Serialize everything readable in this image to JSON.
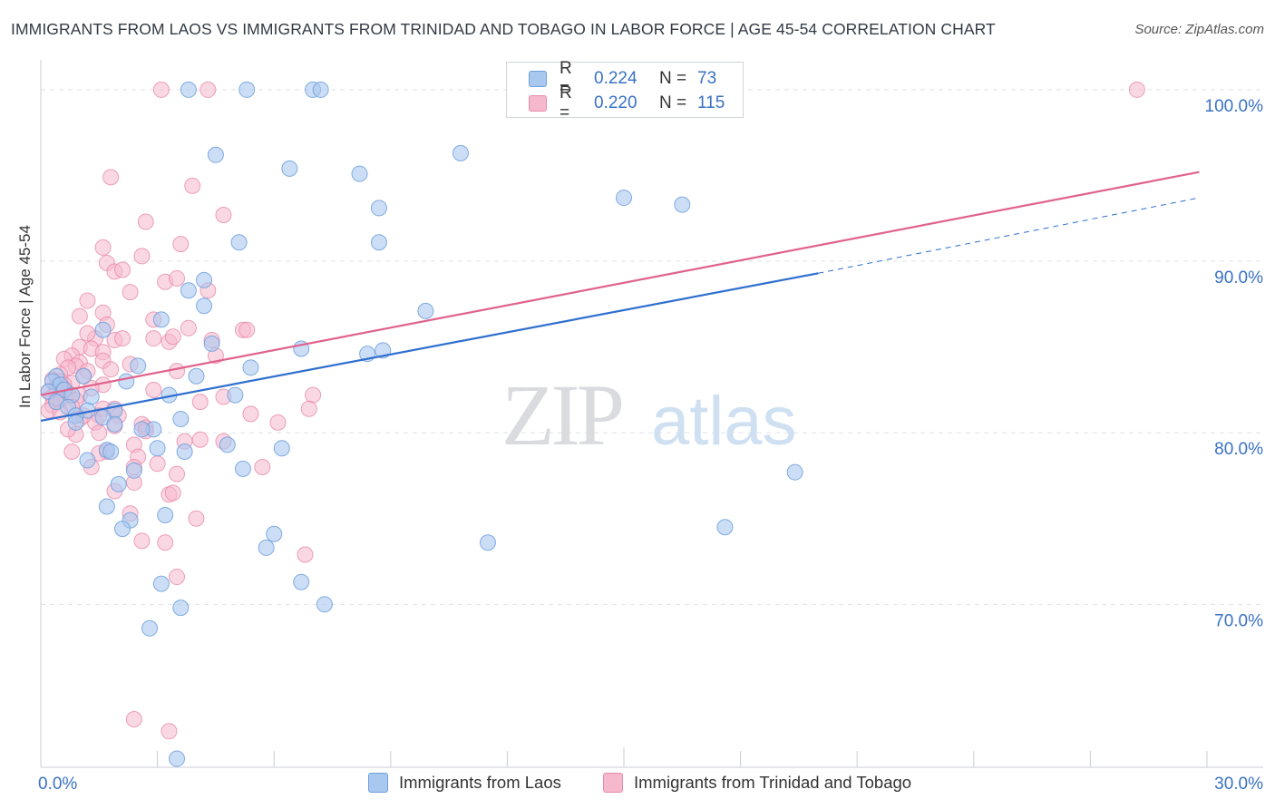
{
  "title": "IMMIGRANTS FROM LAOS VS IMMIGRANTS FROM TRINIDAD AND TOBAGO IN LABOR FORCE | AGE 45-54 CORRELATION CHART",
  "source": "Source: ZipAtlas.com",
  "watermark": {
    "zip": "ZIP",
    "atlas": "atlas"
  },
  "legend": {
    "r_label": "R =",
    "n_label": "N =",
    "rows": [
      {
        "r": "0.224",
        "n": "73"
      },
      {
        "r": "0.220",
        "n": "115"
      }
    ]
  },
  "colors": {
    "blue_fill": "#a9c8f0",
    "blue_stroke": "#6f9fdc",
    "blue_line": "#2f6fcf",
    "pink_fill": "#f6b8cc",
    "pink_stroke": "#e98aab",
    "pink_line": "#e0628d",
    "tick_text": "#3a72c4",
    "grid": "#dde1e6"
  },
  "chart_data": {
    "type": "scatter",
    "title": "IMMIGRANTS FROM LAOS VS IMMIGRANTS FROM TRINIDAD AND TOBAGO IN LABOR FORCE | AGE 45-54 CORRELATION CHART",
    "xlabel": "",
    "ylabel": "In Labor Force | Age 45-54",
    "xlim": [
      0,
      30
    ],
    "ylim": [
      60.5,
      101
    ],
    "x_tick_labels": [
      "0.0%",
      "30.0%"
    ],
    "y_ticks": [
      70,
      80,
      90,
      100
    ],
    "y_tick_labels": [
      "70.0%",
      "80.0%",
      "90.0%",
      "100.0%"
    ],
    "grid": true,
    "legend_position": "top-center",
    "series": [
      {
        "name": "Immigrants from Laos",
        "r": 0.224,
        "n": 73,
        "trend": {
          "x0": 0.0,
          "y0": 80.7,
          "x1": 20.0,
          "y1": 89.3,
          "dashed_to_x": 29.8,
          "dashed_to_y": 93.7
        },
        "points": [
          [
            3.8,
            100
          ],
          [
            5.3,
            100
          ],
          [
            7.0,
            100
          ],
          [
            7.2,
            100
          ],
          [
            4.5,
            96.2
          ],
          [
            6.4,
            95.4
          ],
          [
            8.2,
            95.1
          ],
          [
            10.8,
            96.3
          ],
          [
            15.0,
            93.7
          ],
          [
            16.5,
            93.3
          ],
          [
            8.7,
            93.1
          ],
          [
            5.1,
            91.1
          ],
          [
            8.7,
            91.1
          ],
          [
            4.2,
            88.9
          ],
          [
            3.8,
            88.3
          ],
          [
            4.2,
            87.4
          ],
          [
            3.1,
            86.6
          ],
          [
            9.9,
            87.1
          ],
          [
            1.6,
            86.0
          ],
          [
            4.4,
            85.2
          ],
          [
            6.7,
            84.9
          ],
          [
            8.4,
            84.6
          ],
          [
            8.8,
            84.8
          ],
          [
            2.5,
            83.9
          ],
          [
            5.4,
            83.8
          ],
          [
            4.0,
            83.3
          ],
          [
            1.1,
            83.3
          ],
          [
            2.2,
            83.0
          ],
          [
            0.4,
            83.3
          ],
          [
            0.3,
            83.0
          ],
          [
            0.5,
            82.8
          ],
          [
            0.6,
            82.5
          ],
          [
            0.8,
            82.2
          ],
          [
            0.2,
            82.4
          ],
          [
            1.3,
            82.1
          ],
          [
            3.3,
            82.2
          ],
          [
            5.0,
            82.2
          ],
          [
            0.4,
            81.8
          ],
          [
            0.7,
            81.5
          ],
          [
            1.2,
            81.3
          ],
          [
            1.9,
            81.3
          ],
          [
            0.9,
            81.0
          ],
          [
            1.6,
            80.9
          ],
          [
            1.9,
            80.5
          ],
          [
            3.6,
            80.8
          ],
          [
            2.9,
            80.2
          ],
          [
            2.6,
            80.2
          ],
          [
            0.9,
            80.6
          ],
          [
            4.8,
            79.3
          ],
          [
            6.2,
            79.1
          ],
          [
            3.0,
            79.1
          ],
          [
            3.7,
            78.9
          ],
          [
            1.7,
            79.0
          ],
          [
            1.2,
            78.4
          ],
          [
            1.8,
            78.9
          ],
          [
            2.4,
            77.8
          ],
          [
            5.2,
            77.9
          ],
          [
            19.4,
            77.7
          ],
          [
            2.0,
            77.0
          ],
          [
            1.7,
            75.7
          ],
          [
            3.2,
            75.2
          ],
          [
            2.3,
            74.9
          ],
          [
            2.1,
            74.4
          ],
          [
            6.0,
            74.1
          ],
          [
            11.5,
            73.6
          ],
          [
            17.6,
            74.5
          ],
          [
            5.8,
            73.3
          ],
          [
            3.1,
            71.2
          ],
          [
            6.7,
            71.3
          ],
          [
            7.3,
            70.0
          ],
          [
            3.6,
            69.8
          ],
          [
            2.8,
            68.6
          ],
          [
            3.5,
            61.0
          ]
        ]
      },
      {
        "name": "Immigrants from Trinidad and Tobago",
        "r": 0.22,
        "n": 115,
        "trend": {
          "x0": 0.0,
          "y0": 82.2,
          "x1": 29.8,
          "y1": 95.2
        },
        "points": [
          [
            3.1,
            100
          ],
          [
            4.3,
            100
          ],
          [
            28.2,
            100
          ],
          [
            1.8,
            94.9
          ],
          [
            3.9,
            94.4
          ],
          [
            4.7,
            92.7
          ],
          [
            2.7,
            92.3
          ],
          [
            1.6,
            90.8
          ],
          [
            3.6,
            91.0
          ],
          [
            2.6,
            90.3
          ],
          [
            1.7,
            89.9
          ],
          [
            1.9,
            89.4
          ],
          [
            2.1,
            89.5
          ],
          [
            3.2,
            88.8
          ],
          [
            3.5,
            89.0
          ],
          [
            2.3,
            88.2
          ],
          [
            4.3,
            88.3
          ],
          [
            1.2,
            87.7
          ],
          [
            1.6,
            87.0
          ],
          [
            1.0,
            86.8
          ],
          [
            2.9,
            86.6
          ],
          [
            1.7,
            86.3
          ],
          [
            3.8,
            86.1
          ],
          [
            5.2,
            86.0
          ],
          [
            5.3,
            86.0
          ],
          [
            1.4,
            85.5
          ],
          [
            1.9,
            85.4
          ],
          [
            2.1,
            85.5
          ],
          [
            2.9,
            85.5
          ],
          [
            3.3,
            85.3
          ],
          [
            4.4,
            85.4
          ],
          [
            3.4,
            85.6
          ],
          [
            1.0,
            85.0
          ],
          [
            1.3,
            84.9
          ],
          [
            1.6,
            84.7
          ],
          [
            0.8,
            84.5
          ],
          [
            0.6,
            84.3
          ],
          [
            4.5,
            84.5
          ],
          [
            1.0,
            84.1
          ],
          [
            1.6,
            84.2
          ],
          [
            2.3,
            84.0
          ],
          [
            0.9,
            83.9
          ],
          [
            0.7,
            83.8
          ],
          [
            1.2,
            83.6
          ],
          [
            1.8,
            83.7
          ],
          [
            3.5,
            83.6
          ],
          [
            0.5,
            83.4
          ],
          [
            1.1,
            83.3
          ],
          [
            0.3,
            83.1
          ],
          [
            0.5,
            83.0
          ],
          [
            0.8,
            82.9
          ],
          [
            1.6,
            82.8
          ],
          [
            0.4,
            82.7
          ],
          [
            0.6,
            82.6
          ],
          [
            1.3,
            82.6
          ],
          [
            2.9,
            82.5
          ],
          [
            0.2,
            82.4
          ],
          [
            0.4,
            82.4
          ],
          [
            0.7,
            82.3
          ],
          [
            1.0,
            82.2
          ],
          [
            0.3,
            82.1
          ],
          [
            0.5,
            81.9
          ],
          [
            0.9,
            81.9
          ],
          [
            4.7,
            82.1
          ],
          [
            7.0,
            82.2
          ],
          [
            0.3,
            81.6
          ],
          [
            0.8,
            81.5
          ],
          [
            1.6,
            81.4
          ],
          [
            1.9,
            81.4
          ],
          [
            6.9,
            81.4
          ],
          [
            0.2,
            81.3
          ],
          [
            0.5,
            81.2
          ],
          [
            1.5,
            81.0
          ],
          [
            1.0,
            80.8
          ],
          [
            1.4,
            80.6
          ],
          [
            2.6,
            80.5
          ],
          [
            6.1,
            80.6
          ],
          [
            2.7,
            80.3
          ],
          [
            2.7,
            80.1
          ],
          [
            1.5,
            80.0
          ],
          [
            0.9,
            79.9
          ],
          [
            4.1,
            79.6
          ],
          [
            4.7,
            79.5
          ],
          [
            2.4,
            79.3
          ],
          [
            3.7,
            79.5
          ],
          [
            0.8,
            78.9
          ],
          [
            1.7,
            78.9
          ],
          [
            1.5,
            78.8
          ],
          [
            2.5,
            78.6
          ],
          [
            2.4,
            78.0
          ],
          [
            1.3,
            78.0
          ],
          [
            3.0,
            78.2
          ],
          [
            5.7,
            78.0
          ],
          [
            3.5,
            77.6
          ],
          [
            2.4,
            77.1
          ],
          [
            1.9,
            76.6
          ],
          [
            3.3,
            76.4
          ],
          [
            3.4,
            76.5
          ],
          [
            4.0,
            75.0
          ],
          [
            2.3,
            75.3
          ],
          [
            2.6,
            73.7
          ],
          [
            3.2,
            73.6
          ],
          [
            6.8,
            72.9
          ],
          [
            3.5,
            71.6
          ],
          [
            2.4,
            63.3
          ],
          [
            3.3,
            62.6
          ],
          [
            1.1,
            81.0
          ],
          [
            0.6,
            82.8
          ],
          [
            1.2,
            85.8
          ],
          [
            2.0,
            81.0
          ],
          [
            0.4,
            82.0
          ],
          [
            5.4,
            81.1
          ],
          [
            4.1,
            81.8
          ],
          [
            1.9,
            80.4
          ],
          [
            0.7,
            80.2
          ]
        ]
      }
    ]
  }
}
